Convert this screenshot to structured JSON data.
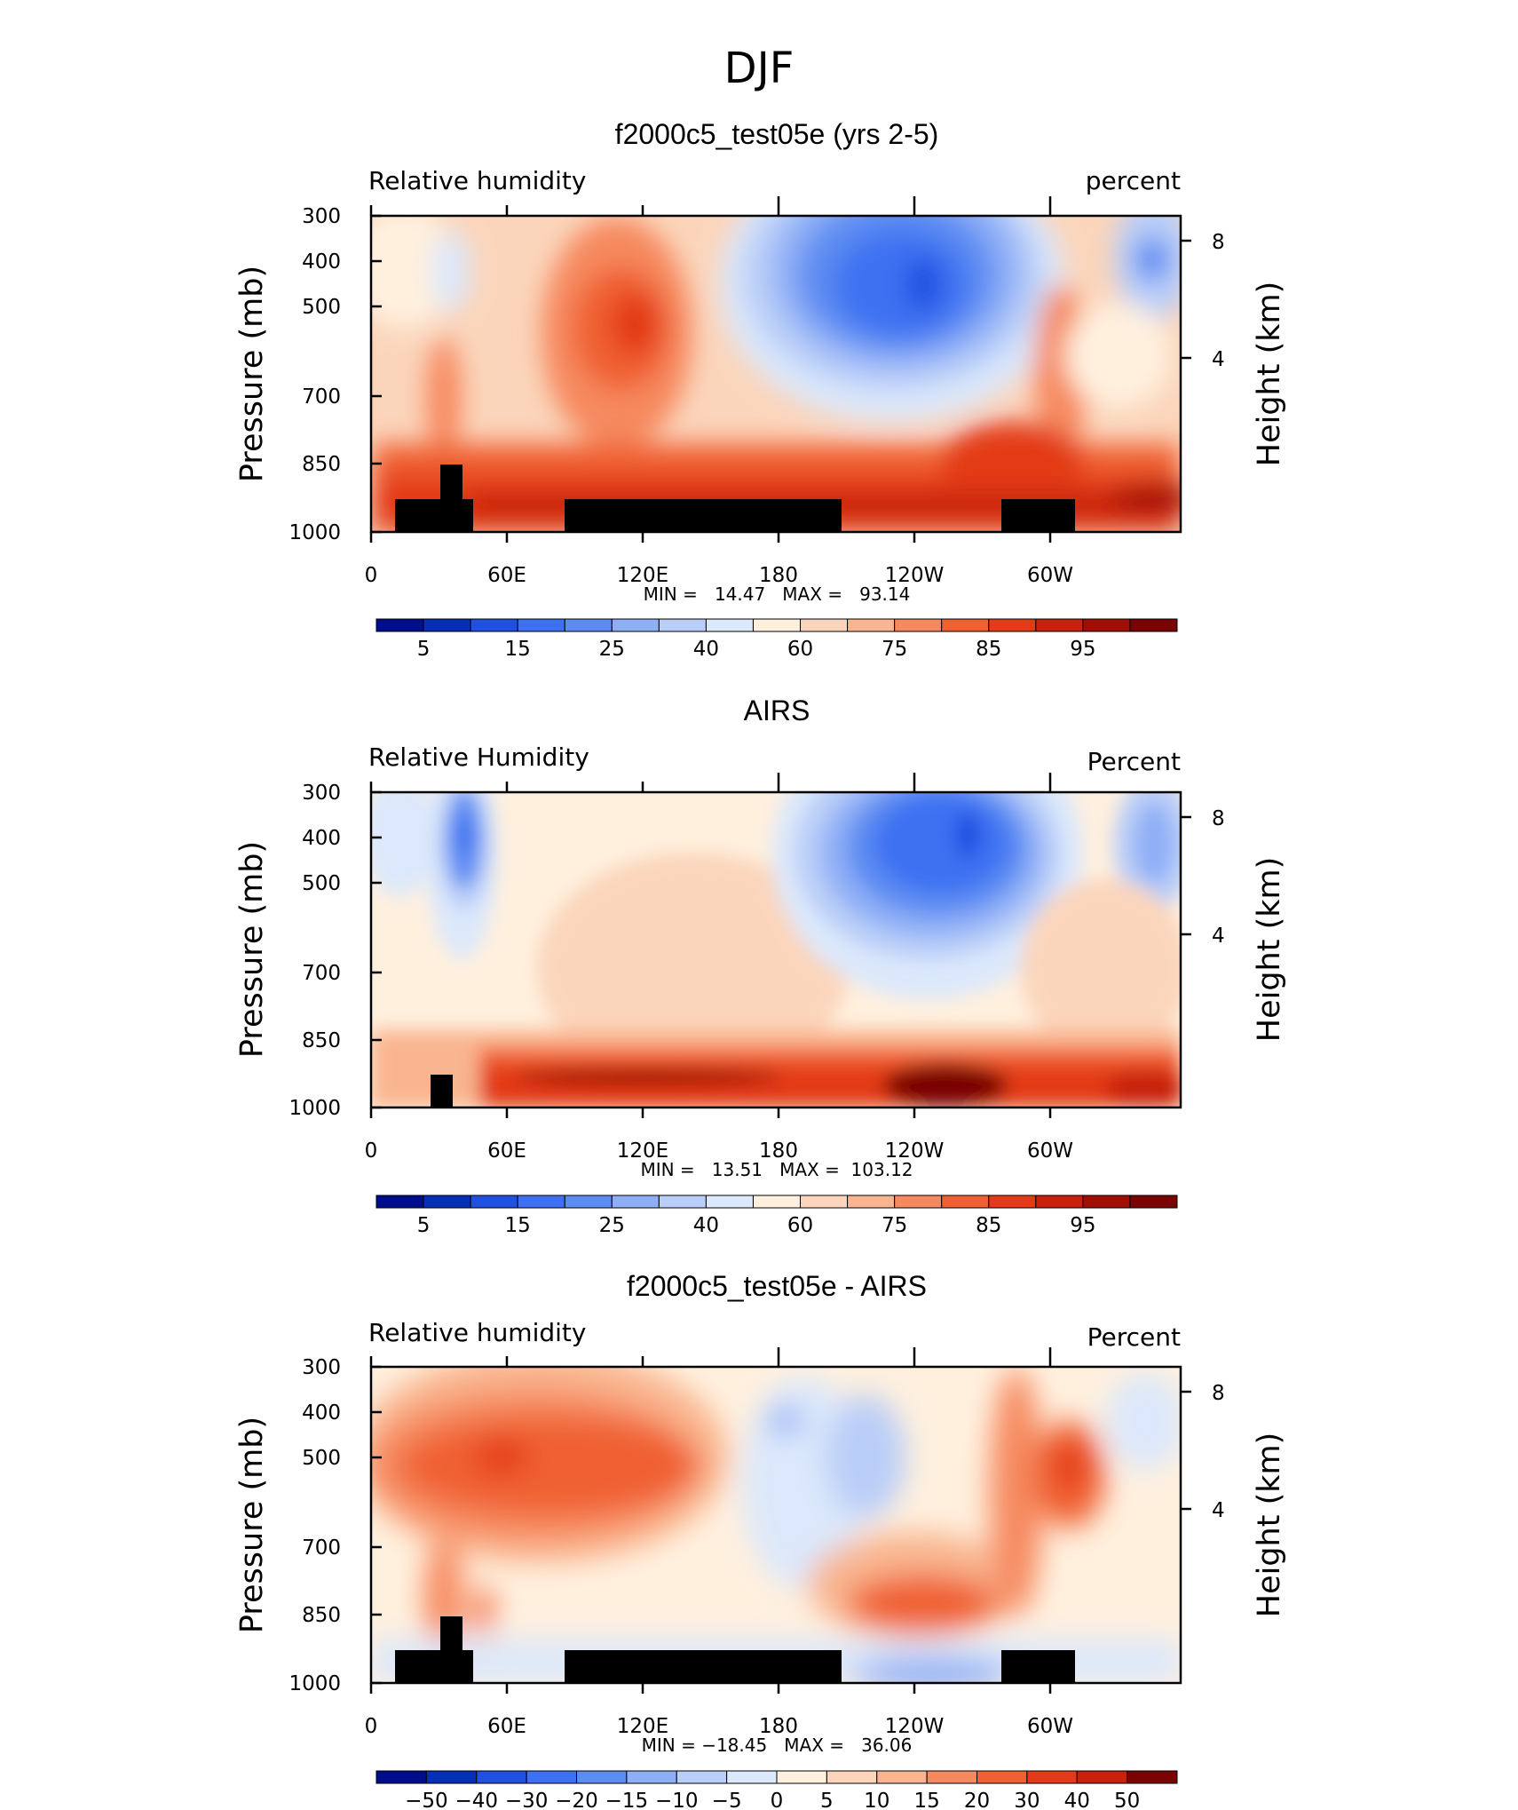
{
  "title": "DJF",
  "chart_data": [
    {
      "type": "heatmap",
      "title": "f2000c5_test05e (yrs 2-5)",
      "left_label": "Relative humidity",
      "right_label": "percent",
      "xlabel": "",
      "ylabel": "Pressure (mb)",
      "ylabel_right": "Height (km)",
      "x_ticks": [
        "0",
        "60E",
        "120E",
        "180",
        "120W",
        "60W"
      ],
      "y_ticks": [
        "300",
        "400",
        "500",
        "700",
        "850",
        "1000"
      ],
      "y_right_ticks": [
        "8",
        "4"
      ],
      "min_max": "MIN =   14.47   MAX =   93.14",
      "colorbar_labels": [
        "5",
        "15",
        "25",
        "40",
        "60",
        "75",
        "85",
        "95"
      ],
      "colorbar_colors": [
        "#000E8B",
        "#0530B6",
        "#1F50E0",
        "#3D71F2",
        "#5C8BF2",
        "#8EAEF6",
        "#B9CEF8",
        "#DCE8FB",
        "#FFF0DE",
        "#FBD5BB",
        "#F9B58F",
        "#F6895F",
        "#F06131",
        "#E33B17",
        "#C8210E",
        "#A10E06",
        "#7A0303"
      ],
      "max_region_value": 93.14,
      "min_region_value": 14.47
    },
    {
      "type": "heatmap",
      "title": "AIRS",
      "left_label": "Relative Humidity",
      "right_label": "Percent",
      "xlabel": "",
      "ylabel": "Pressure (mb)",
      "ylabel_right": "Height (km)",
      "x_ticks": [
        "0",
        "60E",
        "120E",
        "180",
        "120W",
        "60W"
      ],
      "y_ticks": [
        "300",
        "400",
        "500",
        "700",
        "850",
        "1000"
      ],
      "y_right_ticks": [
        "8",
        "4"
      ],
      "min_max": "MIN =   13.51   MAX =  103.12",
      "colorbar_labels": [
        "5",
        "15",
        "25",
        "40",
        "60",
        "75",
        "85",
        "95"
      ],
      "colorbar_colors": [
        "#000E8B",
        "#0530B6",
        "#1F50E0",
        "#3D71F2",
        "#5C8BF2",
        "#8EAEF6",
        "#B9CEF8",
        "#DCE8FB",
        "#FFF0DE",
        "#FBD5BB",
        "#F9B58F",
        "#F6895F",
        "#F06131",
        "#E33B17",
        "#C8210E",
        "#A10E06",
        "#7A0303"
      ],
      "max_region_value": 103.12,
      "min_region_value": 13.51
    },
    {
      "type": "heatmap",
      "title": "f2000c5_test05e - AIRS",
      "left_label": "Relative humidity",
      "right_label": "Percent",
      "xlabel": "",
      "ylabel": "Pressure (mb)",
      "ylabel_right": "Height (km)",
      "x_ticks": [
        "0",
        "60E",
        "120E",
        "180",
        "120W",
        "60W"
      ],
      "y_ticks": [
        "300",
        "400",
        "500",
        "700",
        "850",
        "1000"
      ],
      "y_right_ticks": [
        "8",
        "4"
      ],
      "min_max": "MIN = −18.45   MAX =   36.06",
      "colorbar_labels": [
        "−50",
        "−40",
        "−30",
        "−20",
        "−15",
        "−10",
        "−5",
        "0",
        "5",
        "10",
        "15",
        "20",
        "30",
        "40",
        "50"
      ],
      "colorbar_colors": [
        "#000E8B",
        "#0530B6",
        "#1F50E0",
        "#3D71F2",
        "#5C8BF2",
        "#8EAEF6",
        "#B9CEF8",
        "#DCE8FB",
        "#FFF0DE",
        "#FBD5BB",
        "#F9B58F",
        "#F6895F",
        "#F06131",
        "#E33B17",
        "#C8210E",
        "#7A0303"
      ],
      "max_region_value": 36.06,
      "min_region_value": -18.45
    }
  ]
}
